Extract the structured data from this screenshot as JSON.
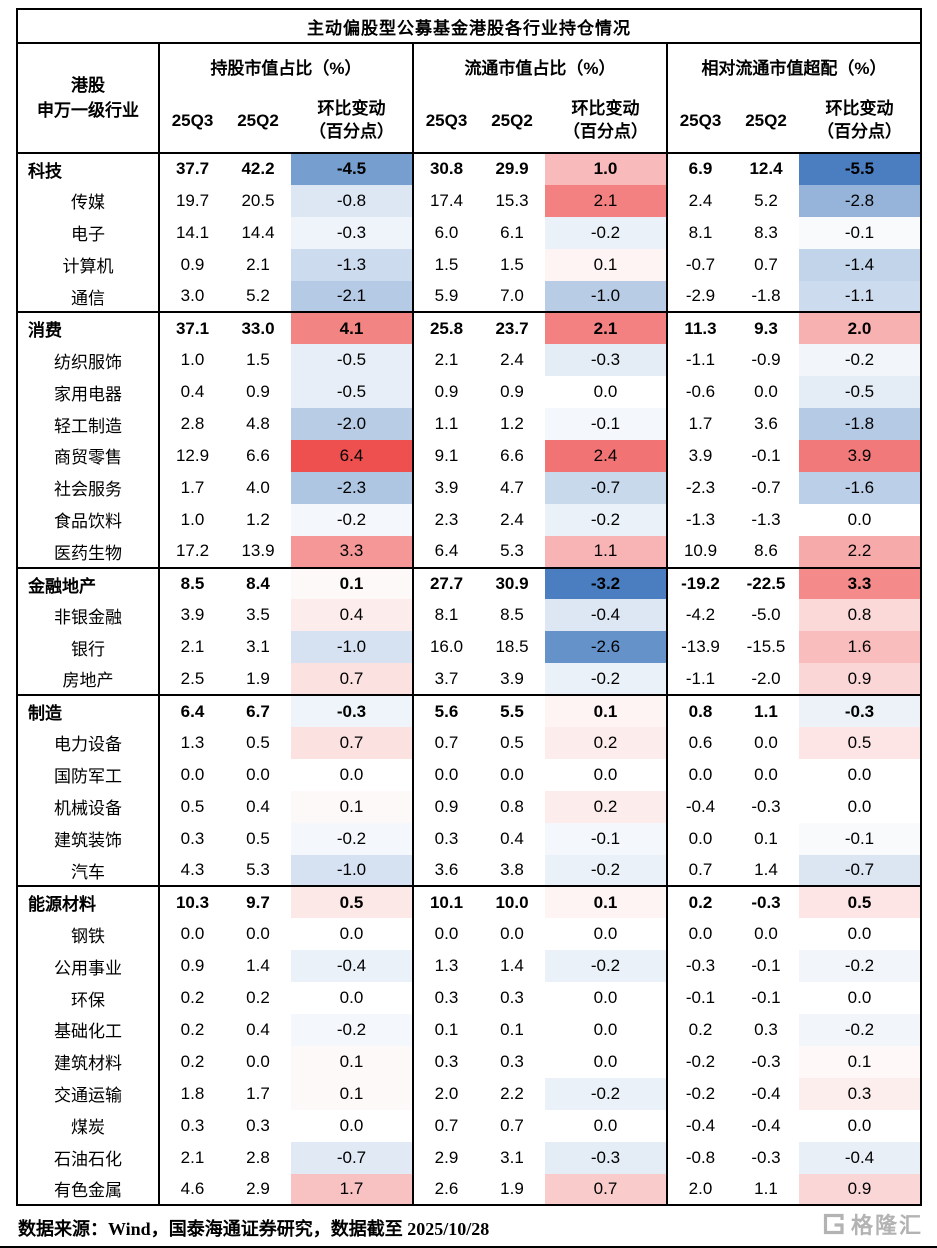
{
  "chart_data": {
    "type": "table",
    "title": "主动偏股型公募基金港股各行业持仓情况",
    "row_header": "港股\n申万一级行业",
    "column_groups": [
      "持股市值占比（%）",
      "流通市值占比（%）",
      "相对流通市值超配（%）"
    ],
    "subcolumns": [
      "25Q3",
      "25Q2",
      "环比变动\n（百分点）"
    ],
    "heatmap_note": "环比变动 columns are conditionally formatted: positive=red scale, negative=blue scale, intensity scaled per column max",
    "rows": [
      {
        "label": "科技",
        "bold": true,
        "values": [
          37.7,
          42.2,
          -4.5,
          30.8,
          29.9,
          1.0,
          6.9,
          12.4,
          -5.5
        ]
      },
      {
        "label": "传媒",
        "bold": false,
        "values": [
          19.7,
          20.5,
          -0.8,
          17.4,
          15.3,
          2.1,
          2.4,
          5.2,
          -2.8
        ]
      },
      {
        "label": "电子",
        "bold": false,
        "values": [
          14.1,
          14.4,
          -0.3,
          6.0,
          6.1,
          -0.2,
          8.1,
          8.3,
          -0.1
        ]
      },
      {
        "label": "计算机",
        "bold": false,
        "values": [
          0.9,
          2.1,
          -1.3,
          1.5,
          1.5,
          0.1,
          -0.7,
          0.7,
          -1.4
        ]
      },
      {
        "label": "通信",
        "bold": false,
        "values": [
          3.0,
          5.2,
          -2.1,
          5.9,
          7.0,
          -1.0,
          -2.9,
          -1.8,
          -1.1
        ]
      },
      {
        "label": "消费",
        "bold": true,
        "values": [
          37.1,
          33.0,
          4.1,
          25.8,
          23.7,
          2.1,
          11.3,
          9.3,
          2.0
        ]
      },
      {
        "label": "纺织服饰",
        "bold": false,
        "values": [
          1.0,
          1.5,
          -0.5,
          2.1,
          2.4,
          -0.3,
          -1.1,
          -0.9,
          -0.2
        ]
      },
      {
        "label": "家用电器",
        "bold": false,
        "values": [
          0.4,
          0.9,
          -0.5,
          0.9,
          0.9,
          0.0,
          -0.6,
          0.0,
          -0.5
        ]
      },
      {
        "label": "轻工制造",
        "bold": false,
        "values": [
          2.8,
          4.8,
          -2.0,
          1.1,
          1.2,
          -0.1,
          1.7,
          3.6,
          -1.8
        ]
      },
      {
        "label": "商贸零售",
        "bold": false,
        "values": [
          12.9,
          6.6,
          6.4,
          9.1,
          6.6,
          2.4,
          3.9,
          -0.1,
          3.9
        ]
      },
      {
        "label": "社会服务",
        "bold": false,
        "values": [
          1.7,
          4.0,
          -2.3,
          3.9,
          4.7,
          -0.7,
          -2.3,
          -0.7,
          -1.6
        ]
      },
      {
        "label": "食品饮料",
        "bold": false,
        "values": [
          1.0,
          1.2,
          -0.2,
          2.3,
          2.4,
          -0.2,
          -1.3,
          -1.3,
          0.0
        ]
      },
      {
        "label": "医药生物",
        "bold": false,
        "values": [
          17.2,
          13.9,
          3.3,
          6.4,
          5.3,
          1.1,
          10.9,
          8.6,
          2.2
        ]
      },
      {
        "label": "金融地产",
        "bold": true,
        "values": [
          8.5,
          8.4,
          0.1,
          27.7,
          30.9,
          -3.2,
          -19.2,
          -22.5,
          3.3
        ]
      },
      {
        "label": "非银金融",
        "bold": false,
        "values": [
          3.9,
          3.5,
          0.4,
          8.1,
          8.5,
          -0.4,
          -4.2,
          -5.0,
          0.8
        ]
      },
      {
        "label": "银行",
        "bold": false,
        "values": [
          2.1,
          3.1,
          -1.0,
          16.0,
          18.5,
          -2.6,
          -13.9,
          -15.5,
          1.6
        ]
      },
      {
        "label": "房地产",
        "bold": false,
        "values": [
          2.5,
          1.9,
          0.7,
          3.7,
          3.9,
          -0.2,
          -1.1,
          -2.0,
          0.9
        ]
      },
      {
        "label": "制造",
        "bold": true,
        "values": [
          6.4,
          6.7,
          -0.3,
          5.6,
          5.5,
          0.1,
          0.8,
          1.1,
          -0.3
        ]
      },
      {
        "label": "电力设备",
        "bold": false,
        "values": [
          1.3,
          0.5,
          0.7,
          0.7,
          0.5,
          0.2,
          0.6,
          0.0,
          0.5
        ]
      },
      {
        "label": "国防军工",
        "bold": false,
        "values": [
          0.0,
          0.0,
          0.0,
          0.0,
          0.0,
          0.0,
          0.0,
          0.0,
          0.0
        ]
      },
      {
        "label": "机械设备",
        "bold": false,
        "values": [
          0.5,
          0.4,
          0.1,
          0.9,
          0.8,
          0.2,
          -0.4,
          -0.3,
          0.0
        ]
      },
      {
        "label": "建筑装饰",
        "bold": false,
        "values": [
          0.3,
          0.5,
          -0.2,
          0.3,
          0.4,
          -0.1,
          0.0,
          0.1,
          -0.1
        ]
      },
      {
        "label": "汽车",
        "bold": false,
        "values": [
          4.3,
          5.3,
          -1.0,
          3.6,
          3.8,
          -0.2,
          0.7,
          1.4,
          -0.7
        ]
      },
      {
        "label": "能源材料",
        "bold": true,
        "values": [
          10.3,
          9.7,
          0.5,
          10.1,
          10.0,
          0.1,
          0.2,
          -0.3,
          0.5
        ]
      },
      {
        "label": "钢铁",
        "bold": false,
        "values": [
          0.0,
          0.0,
          0.0,
          0.0,
          0.0,
          0.0,
          0.0,
          0.0,
          0.0
        ]
      },
      {
        "label": "公用事业",
        "bold": false,
        "values": [
          0.9,
          1.4,
          -0.4,
          1.3,
          1.4,
          -0.2,
          -0.3,
          -0.1,
          -0.2
        ]
      },
      {
        "label": "环保",
        "bold": false,
        "values": [
          0.2,
          0.2,
          0.0,
          0.3,
          0.3,
          0.0,
          -0.1,
          -0.1,
          0.0
        ]
      },
      {
        "label": "基础化工",
        "bold": false,
        "values": [
          0.2,
          0.4,
          -0.2,
          0.1,
          0.1,
          0.0,
          0.2,
          0.3,
          -0.2
        ]
      },
      {
        "label": "建筑材料",
        "bold": false,
        "values": [
          0.2,
          0.0,
          0.1,
          0.3,
          0.3,
          0.0,
          -0.2,
          -0.3,
          0.1
        ]
      },
      {
        "label": "交通运输",
        "bold": false,
        "values": [
          1.8,
          1.7,
          0.1,
          2.0,
          2.2,
          -0.2,
          -0.2,
          -0.4,
          0.3
        ]
      },
      {
        "label": "煤炭",
        "bold": false,
        "values": [
          0.3,
          0.3,
          0.0,
          0.7,
          0.7,
          0.0,
          -0.4,
          -0.4,
          0.0
        ]
      },
      {
        "label": "石油石化",
        "bold": false,
        "values": [
          2.1,
          2.8,
          -0.7,
          2.9,
          3.1,
          -0.3,
          -0.8,
          -0.3,
          -0.4
        ]
      },
      {
        "label": "有色金属",
        "bold": false,
        "values": [
          4.6,
          2.9,
          1.7,
          2.6,
          1.9,
          0.7,
          2.0,
          1.1,
          0.9
        ]
      }
    ]
  },
  "colors": {
    "heat_positive": "#ee4f4f",
    "heat_negative": "#4a7ec0",
    "border": "#000000",
    "watermark_gray": "#b3b3b3"
  },
  "footer": {
    "text": "数据来源：Wind，国泰海通证券研究，数据截至 2025/10/28"
  },
  "watermark": {
    "text": "格隆汇"
  }
}
